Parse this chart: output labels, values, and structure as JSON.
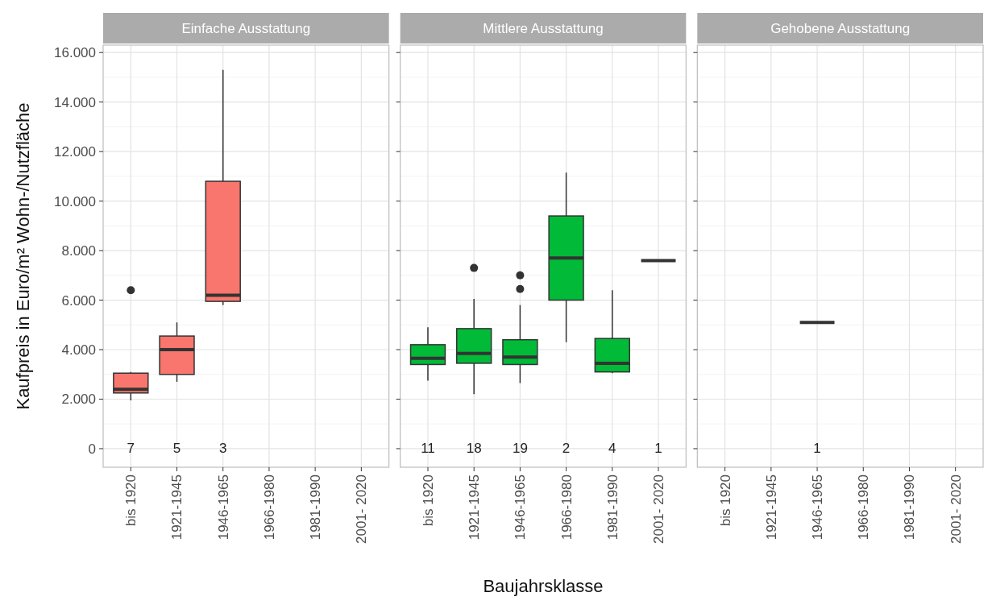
{
  "chart_data": [
    {
      "type": "box",
      "title": "Einfache Ausstattung",
      "ylabel": "Kaufpreis in Euro/m² Wohn-/Nutzfläche",
      "categories": [
        "bis 1920",
        "1921-1945",
        "1946-1965",
        "1966-1980",
        "1981-1990",
        "2001- 2020"
      ],
      "color": "#f8766d",
      "grid": true,
      "ylim": [
        -750,
        16300
      ],
      "yticks": [
        0,
        {
          "value": 2000,
          "label": "2.000"
        },
        {
          "value": 4000,
          "label": "4.000"
        },
        {
          "value": 6000,
          "label": "6.000"
        },
        {
          "value": 8000,
          "label": "8.000"
        },
        {
          "value": 10000,
          "label": "10.000"
        },
        {
          "value": 12000,
          "label": "12.000"
        },
        {
          "value": 14000,
          "label": "14.000"
        },
        {
          "value": 16000,
          "label": "16.000"
        }
      ],
      "boxes": [
        {
          "low": 1950,
          "q1": 2250,
          "median": 2400,
          "q3": 3050,
          "high": 3100,
          "outliers": [
            6400
          ]
        },
        {
          "low": 2700,
          "q1": 3000,
          "median": 4000,
          "q3": 4550,
          "high": 5100
        },
        {
          "low": 5800,
          "q1": 5950,
          "median": 6200,
          "q3": 10800,
          "high": 15300
        },
        null,
        null,
        null
      ],
      "annotations": [
        "7",
        "5",
        "3"
      ]
    },
    {
      "type": "box",
      "title": "Mittlere Ausstattung",
      "xlabel": "Baujahrsklasse",
      "categories": [
        "bis 1920",
        "1921-1945",
        "1946-1965",
        "1966-1980",
        "1981-1990",
        "2001- 2020"
      ],
      "colors": [
        "#00ba38",
        "#00ba38",
        "#00ba38",
        "#00ba38",
        "#00ba38",
        "#333333"
      ],
      "grid": true,
      "tick_labels": "x",
      "ylim": [
        -750,
        16300
      ],
      "yticks": [
        {
          "value": 0,
          "label": null
        },
        {
          "value": 2000,
          "label": null
        },
        {
          "value": 4000,
          "label": null
        },
        {
          "value": 6000,
          "label": null
        },
        {
          "value": 8000,
          "label": null
        },
        {
          "value": 10000,
          "label": null
        },
        {
          "value": 12000,
          "label": null
        },
        {
          "value": 14000,
          "label": null
        },
        {
          "value": 16000,
          "label": null
        }
      ],
      "boxes": [
        {
          "low": 2750,
          "q1": 3400,
          "median": 3650,
          "q3": 4200,
          "high": 4900
        },
        {
          "low": 2200,
          "q1": 3450,
          "median": 3850,
          "q3": 4850,
          "high": 6050,
          "outliers": [
            7300
          ]
        },
        {
          "low": 2650,
          "q1": 3400,
          "median": 3700,
          "q3": 4400,
          "high": 5800,
          "outliers": [
            6450,
            7000
          ]
        },
        {
          "low": 4300,
          "q1": 6000,
          "median": 7700,
          "q3": 9400,
          "high": 11150
        },
        {
          "low": 3050,
          "q1": 3100,
          "median": 3450,
          "q3": 4450,
          "high": 6400
        },
        {
          "low": 7600,
          "q1": 7600,
          "median": 7600,
          "q3": 7600,
          "high": 7600
        }
      ],
      "annotations": [
        "11",
        "18",
        "19",
        "2",
        "4",
        "1"
      ]
    },
    {
      "type": "box",
      "title": "Gehobene Ausstattung",
      "categories": [
        "bis 1920",
        "1921-1945",
        "1946-1965",
        "1966-1980",
        "1981-1990",
        "2001- 2020"
      ],
      "grid": true,
      "tick_labels": "x",
      "ylim": [
        -750,
        16300
      ],
      "yticks": [
        {
          "value": 0,
          "label": null
        },
        {
          "value": 2000,
          "label": null
        },
        {
          "value": 4000,
          "label": null
        },
        {
          "value": 6000,
          "label": null
        },
        {
          "value": 8000,
          "label": null
        },
        {
          "value": 10000,
          "label": null
        },
        {
          "value": 12000,
          "label": null
        },
        {
          "value": 14000,
          "label": null
        },
        {
          "value": 16000,
          "label": null
        }
      ],
      "boxes": [
        null,
        null,
        {
          "low": 5100,
          "q1": 5100,
          "median": 5100,
          "q3": 5100,
          "high": 5100
        },
        null,
        null,
        null
      ],
      "annotations": [
        "1"
      ]
    }
  ]
}
